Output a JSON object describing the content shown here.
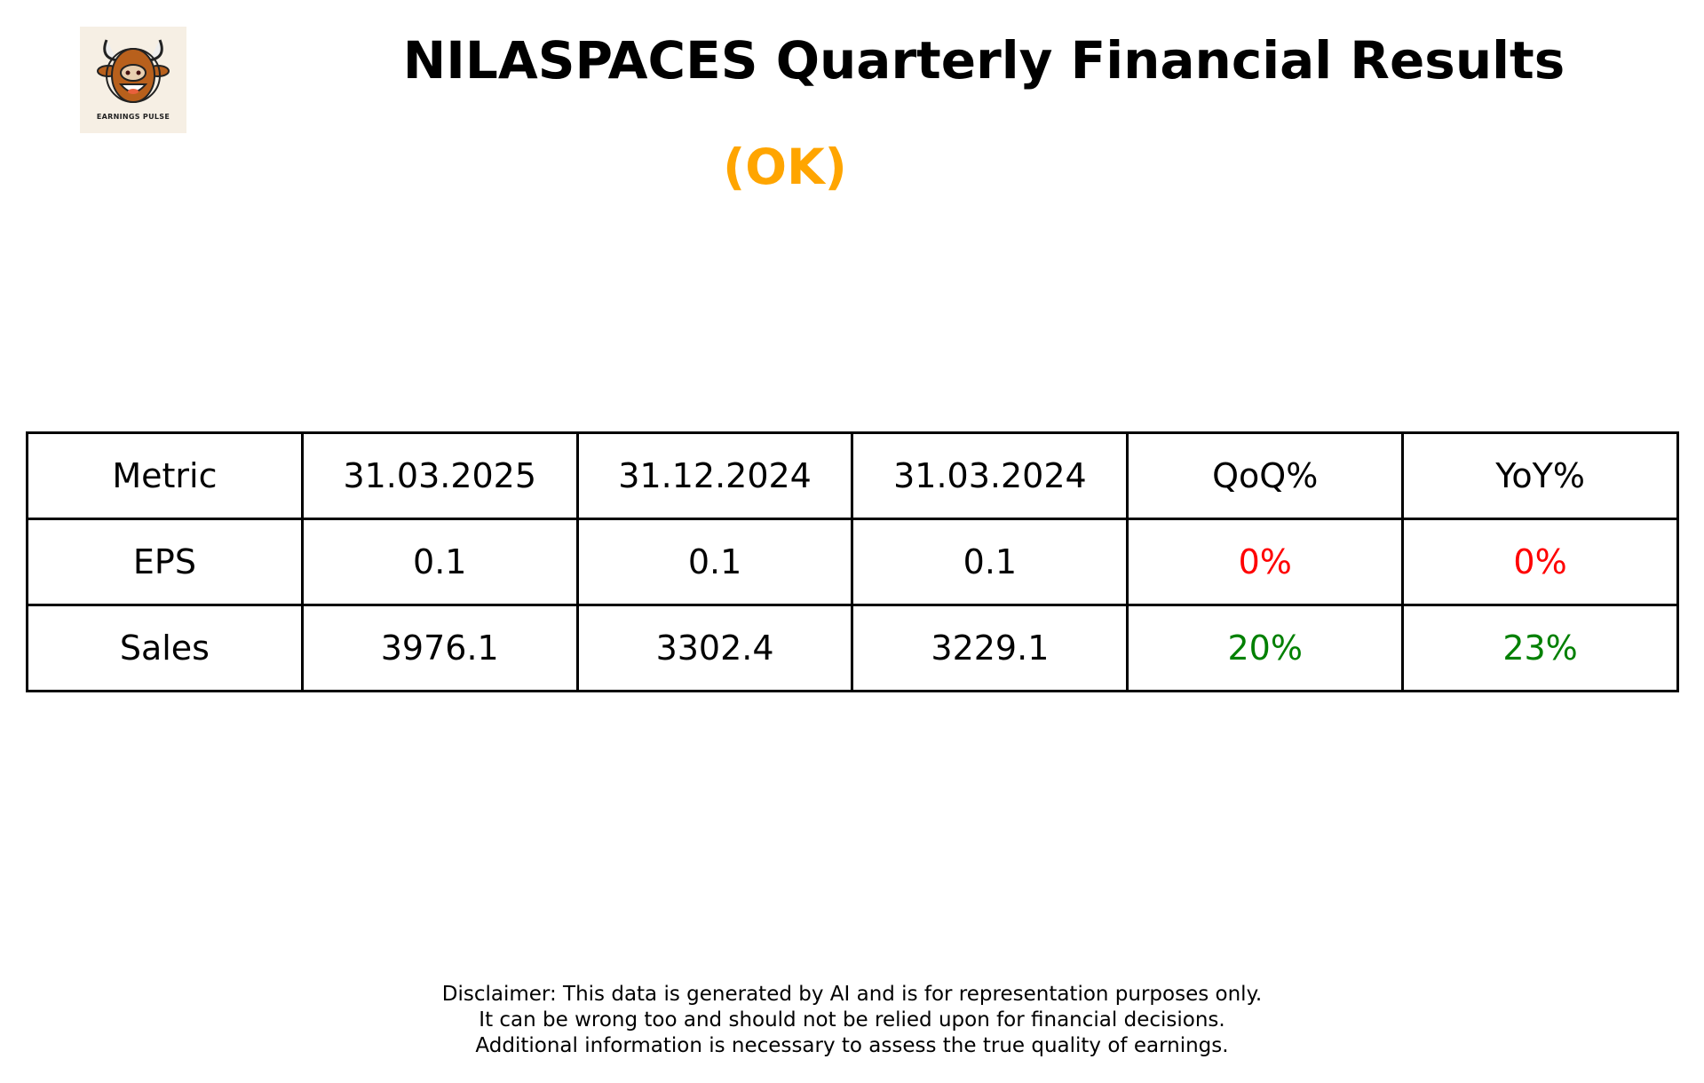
{
  "logo": {
    "text": "EARNINGS PULSE"
  },
  "title": "NILASPACES Quarterly Financial Results",
  "rating": {
    "text": "(OK)",
    "color": "#FFA500"
  },
  "table": {
    "headers": [
      "Metric",
      "31.03.2025",
      "31.12.2024",
      "31.03.2024",
      "QoQ%",
      "YoY%"
    ],
    "rows": [
      {
        "cells": [
          "EPS",
          "0.1",
          "0.1",
          "0.1",
          "0%",
          "0%"
        ],
        "change_colors": [
          "#FF0000",
          "#FF0000"
        ]
      },
      {
        "cells": [
          "Sales",
          "3976.1",
          "3302.4",
          "3229.1",
          "20%",
          "23%"
        ],
        "change_colors": [
          "#008000",
          "#008000"
        ]
      }
    ]
  },
  "disclaimer": [
    "Disclaimer: This data is generated by AI and is for representation purposes only.",
    "It can be wrong too and should not be relied upon for financial decisions.",
    "Additional information is necessary to assess the true quality of earnings."
  ]
}
